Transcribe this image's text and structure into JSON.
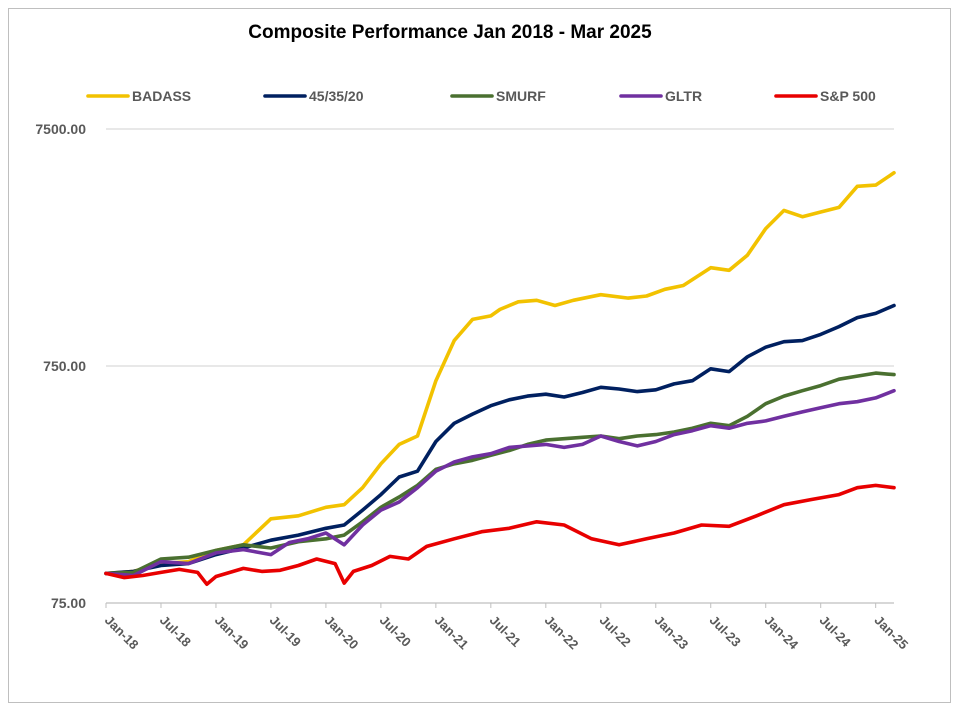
{
  "chart_data": {
    "type": "line",
    "title": "Composite Performance Jan 2018 - Mar 2025",
    "xlabel": "",
    "ylabel": "",
    "y_scale": "log",
    "ylim": [
      75,
      7500
    ],
    "y_ticks": [
      "75.00",
      "750.00",
      "7500.00"
    ],
    "x_tick_labels": [
      "Jan-18",
      "Jul-18",
      "Jan-19",
      "Jul-19",
      "Jan-20",
      "Jul-20",
      "Jan-21",
      "Jul-21",
      "Jan-22",
      "Jul-22",
      "Jan-23",
      "Jul-23",
      "Jan-24",
      "Jul-24",
      "Jan-25"
    ],
    "x_range": [
      "2018-01",
      "2025-03"
    ],
    "grid": "horizontal",
    "legend_position": "top",
    "series": [
      {
        "name": "BADASS",
        "color": "#F2C200",
        "points": [
          [
            "2018-01",
            100
          ],
          [
            "2018-04",
            102
          ],
          [
            "2018-07",
            110
          ],
          [
            "2018-10",
            112
          ],
          [
            "2019-01",
            125
          ],
          [
            "2019-04",
            132
          ],
          [
            "2019-07",
            170
          ],
          [
            "2019-10",
            175
          ],
          [
            "2020-01",
            190
          ],
          [
            "2020-03",
            195
          ],
          [
            "2020-05",
            230
          ],
          [
            "2020-07",
            290
          ],
          [
            "2020-09",
            350
          ],
          [
            "2020-11",
            380
          ],
          [
            "2021-01",
            650
          ],
          [
            "2021-03",
            960
          ],
          [
            "2021-05",
            1180
          ],
          [
            "2021-07",
            1220
          ],
          [
            "2021-08",
            1300
          ],
          [
            "2021-10",
            1400
          ],
          [
            "2021-12",
            1420
          ],
          [
            "2022-02",
            1350
          ],
          [
            "2022-04",
            1420
          ],
          [
            "2022-07",
            1500
          ],
          [
            "2022-10",
            1450
          ],
          [
            "2022-12",
            1480
          ],
          [
            "2023-02",
            1580
          ],
          [
            "2023-04",
            1640
          ],
          [
            "2023-07",
            1950
          ],
          [
            "2023-09",
            1900
          ],
          [
            "2023-11",
            2200
          ],
          [
            "2024-01",
            2850
          ],
          [
            "2024-03",
            3400
          ],
          [
            "2024-05",
            3200
          ],
          [
            "2024-07",
            3350
          ],
          [
            "2024-09",
            3500
          ],
          [
            "2024-11",
            4300
          ],
          [
            "2025-01",
            4350
          ],
          [
            "2025-03",
            4900
          ]
        ]
      },
      {
        "name": "45/35/20",
        "color": "#002060",
        "points": [
          [
            "2018-01",
            100
          ],
          [
            "2018-04",
            102
          ],
          [
            "2018-07",
            108
          ],
          [
            "2018-10",
            110
          ],
          [
            "2019-01",
            120
          ],
          [
            "2019-04",
            128
          ],
          [
            "2019-07",
            138
          ],
          [
            "2019-10",
            145
          ],
          [
            "2020-01",
            155
          ],
          [
            "2020-03",
            160
          ],
          [
            "2020-05",
            185
          ],
          [
            "2020-07",
            215
          ],
          [
            "2020-09",
            255
          ],
          [
            "2020-11",
            270
          ],
          [
            "2021-01",
            360
          ],
          [
            "2021-03",
            430
          ],
          [
            "2021-05",
            470
          ],
          [
            "2021-07",
            510
          ],
          [
            "2021-09",
            540
          ],
          [
            "2021-11",
            560
          ],
          [
            "2022-01",
            570
          ],
          [
            "2022-03",
            555
          ],
          [
            "2022-05",
            580
          ],
          [
            "2022-07",
            610
          ],
          [
            "2022-09",
            600
          ],
          [
            "2022-11",
            585
          ],
          [
            "2023-01",
            595
          ],
          [
            "2023-03",
            630
          ],
          [
            "2023-05",
            650
          ],
          [
            "2023-07",
            730
          ],
          [
            "2023-09",
            710
          ],
          [
            "2023-11",
            820
          ],
          [
            "2024-01",
            900
          ],
          [
            "2024-03",
            950
          ],
          [
            "2024-05",
            960
          ],
          [
            "2024-07",
            1020
          ],
          [
            "2024-09",
            1100
          ],
          [
            "2024-11",
            1200
          ],
          [
            "2025-01",
            1250
          ],
          [
            "2025-03",
            1350
          ]
        ]
      },
      {
        "name": "SMURF",
        "color": "#4A7030",
        "points": [
          [
            "2018-01",
            100
          ],
          [
            "2018-04",
            101
          ],
          [
            "2018-07",
            115
          ],
          [
            "2018-10",
            117
          ],
          [
            "2019-01",
            125
          ],
          [
            "2019-04",
            132
          ],
          [
            "2019-07",
            128
          ],
          [
            "2019-10",
            136
          ],
          [
            "2020-01",
            140
          ],
          [
            "2020-03",
            145
          ],
          [
            "2020-05",
            165
          ],
          [
            "2020-07",
            190
          ],
          [
            "2020-09",
            210
          ],
          [
            "2020-11",
            235
          ],
          [
            "2021-01",
            275
          ],
          [
            "2021-03",
            290
          ],
          [
            "2021-05",
            300
          ],
          [
            "2021-07",
            315
          ],
          [
            "2021-09",
            330
          ],
          [
            "2021-11",
            350
          ],
          [
            "2022-01",
            365
          ],
          [
            "2022-03",
            370
          ],
          [
            "2022-05",
            375
          ],
          [
            "2022-07",
            380
          ],
          [
            "2022-09",
            370
          ],
          [
            "2022-11",
            380
          ],
          [
            "2023-01",
            385
          ],
          [
            "2023-03",
            395
          ],
          [
            "2023-05",
            410
          ],
          [
            "2023-07",
            430
          ],
          [
            "2023-09",
            420
          ],
          [
            "2023-11",
            460
          ],
          [
            "2024-01",
            520
          ],
          [
            "2024-03",
            560
          ],
          [
            "2024-05",
            590
          ],
          [
            "2024-07",
            620
          ],
          [
            "2024-09",
            660
          ],
          [
            "2024-11",
            680
          ],
          [
            "2025-01",
            700
          ],
          [
            "2025-03",
            690
          ]
        ]
      },
      {
        "name": "GLTR",
        "color": "#7030A0",
        "points": [
          [
            "2018-01",
            100
          ],
          [
            "2018-04",
            98
          ],
          [
            "2018-07",
            112
          ],
          [
            "2018-10",
            110
          ],
          [
            "2019-01",
            122
          ],
          [
            "2019-04",
            126
          ],
          [
            "2019-07",
            120
          ],
          [
            "2019-09",
            135
          ],
          [
            "2019-11",
            140
          ],
          [
            "2020-01",
            148
          ],
          [
            "2020-03",
            132
          ],
          [
            "2020-05",
            160
          ],
          [
            "2020-07",
            185
          ],
          [
            "2020-09",
            200
          ],
          [
            "2020-11",
            230
          ],
          [
            "2021-01",
            270
          ],
          [
            "2021-03",
            295
          ],
          [
            "2021-05",
            310
          ],
          [
            "2021-07",
            320
          ],
          [
            "2021-09",
            340
          ],
          [
            "2021-11",
            345
          ],
          [
            "2022-01",
            350
          ],
          [
            "2022-03",
            340
          ],
          [
            "2022-05",
            350
          ],
          [
            "2022-07",
            380
          ],
          [
            "2022-09",
            360
          ],
          [
            "2022-11",
            345
          ],
          [
            "2023-01",
            360
          ],
          [
            "2023-03",
            385
          ],
          [
            "2023-05",
            400
          ],
          [
            "2023-07",
            420
          ],
          [
            "2023-09",
            410
          ],
          [
            "2023-11",
            430
          ],
          [
            "2024-01",
            440
          ],
          [
            "2024-03",
            460
          ],
          [
            "2024-05",
            480
          ],
          [
            "2024-07",
            500
          ],
          [
            "2024-09",
            520
          ],
          [
            "2024-11",
            530
          ],
          [
            "2025-01",
            550
          ],
          [
            "2025-03",
            590
          ]
        ]
      },
      {
        "name": "S&P 500",
        "color": "#E80000",
        "points": [
          [
            "2018-01",
            100
          ],
          [
            "2018-03",
            96
          ],
          [
            "2018-05",
            98
          ],
          [
            "2018-07",
            101
          ],
          [
            "2018-09",
            104
          ],
          [
            "2018-11",
            101
          ],
          [
            "2018-12",
            90
          ],
          [
            "2019-01",
            97
          ],
          [
            "2019-04",
            105
          ],
          [
            "2019-06",
            102
          ],
          [
            "2019-08",
            103
          ],
          [
            "2019-10",
            108
          ],
          [
            "2019-12",
            115
          ],
          [
            "2020-02",
            110
          ],
          [
            "2020-03",
            91
          ],
          [
            "2020-04",
            102
          ],
          [
            "2020-06",
            108
          ],
          [
            "2020-08",
            118
          ],
          [
            "2020-10",
            115
          ],
          [
            "2020-12",
            130
          ],
          [
            "2021-03",
            140
          ],
          [
            "2021-06",
            150
          ],
          [
            "2021-09",
            155
          ],
          [
            "2021-12",
            165
          ],
          [
            "2022-03",
            160
          ],
          [
            "2022-06",
            140
          ],
          [
            "2022-09",
            132
          ],
          [
            "2022-12",
            140
          ],
          [
            "2023-03",
            148
          ],
          [
            "2023-06",
            160
          ],
          [
            "2023-09",
            158
          ],
          [
            "2023-12",
            175
          ],
          [
            "2024-03",
            195
          ],
          [
            "2024-06",
            205
          ],
          [
            "2024-09",
            215
          ],
          [
            "2024-11",
            230
          ],
          [
            "2025-01",
            235
          ],
          [
            "2025-03",
            230
          ]
        ]
      }
    ]
  }
}
